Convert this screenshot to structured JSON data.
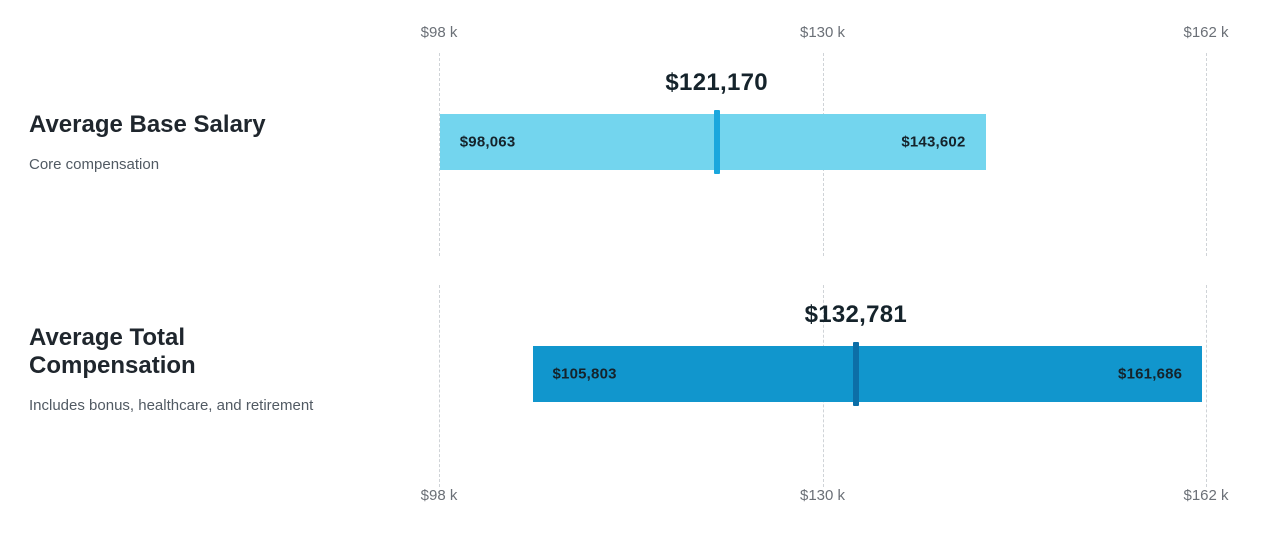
{
  "chart_data": {
    "type": "bar",
    "subtype": "horizontal-range-bars",
    "title": "",
    "axis": {
      "min": 98000,
      "max": 162000,
      "ticks": [
        {
          "label": "$98 k",
          "value": 98000
        },
        {
          "label": "$130 k",
          "value": 130000
        },
        {
          "label": "$162 k",
          "value": 162000
        }
      ],
      "grid": true,
      "tick_positions": "top-and-bottom"
    },
    "rows": [
      {
        "title": "Average Base Salary",
        "subtitle": "Core compensation",
        "min_value": 98063,
        "min_label": "$98,063",
        "max_value": 143602,
        "max_label": "$143,602",
        "avg_value": 121170,
        "avg_label": "$121,170",
        "bar_color": "#73d5ee",
        "marker_color": "#1aa7dd"
      },
      {
        "title": "Average Total Compensation",
        "subtitle": "Includes bonus, healthcare, and retirement",
        "min_value": 105803,
        "min_label": "$105,803",
        "max_value": 161686,
        "max_label": "$161,686",
        "avg_value": 132781,
        "avg_label": "$132,781",
        "bar_color": "#1196cd",
        "marker_color": "#0c6ea7"
      }
    ],
    "colors": {
      "grid": "#cfd3d7",
      "tick_text": "#6b7077",
      "title_text": "#1f262d",
      "subtitle_text": "#515a63",
      "value_text": "#15232b",
      "background": "#ffffff"
    }
  }
}
